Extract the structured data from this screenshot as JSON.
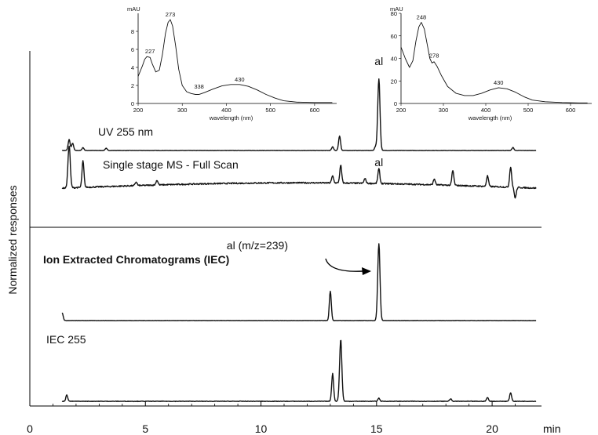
{
  "chart_data": [
    {
      "id": "main",
      "type": "line",
      "ylabel": "Normalized responses",
      "xunit": "min",
      "xlim": [
        0,
        22
      ],
      "xticks": [
        0,
        5,
        10,
        15,
        20
      ],
      "tick_labels": [
        "0",
        "5",
        "10",
        "15",
        "20"
      ],
      "baseline_segments": [
        1.4,
        21.9
      ],
      "series": [
        {
          "name": "UV 255 nm",
          "label_bold": false,
          "peaks": [
            {
              "x": 1.7,
              "h": 15
            },
            {
              "x": 1.85,
              "h": 10
            },
            {
              "x": 2.3,
              "h": 4
            },
            {
              "x": 3.3,
              "h": 3
            },
            {
              "x": 13.1,
              "h": 5
            },
            {
              "x": 13.4,
              "h": 20
            },
            {
              "x": 14.95,
              "h": 5
            },
            {
              "x": 15.1,
              "h": 98
            },
            {
              "x": 20.9,
              "h": 4
            }
          ],
          "annotation": {
            "text": "al",
            "x": 15.1
          }
        },
        {
          "name": "Single stage MS - Full Scan",
          "label_bold": false,
          "peaks": [
            {
              "x": 1.7,
              "h": 72
            },
            {
              "x": 2.3,
              "h": 45
            },
            {
              "x": 4.6,
              "h": 6
            },
            {
              "x": 5.5,
              "h": 8
            },
            {
              "x": 13.1,
              "h": 12
            },
            {
              "x": 13.45,
              "h": 30
            },
            {
              "x": 14.5,
              "h": 8
            },
            {
              "x": 15.1,
              "h": 25
            },
            {
              "x": 17.5,
              "h": 10
            },
            {
              "x": 18.3,
              "h": 25
            },
            {
              "x": 19.8,
              "h": 18
            },
            {
              "x": 20.8,
              "h": 35
            },
            {
              "x": 21.0,
              "h": -18
            }
          ],
          "annotation": {
            "text": "al",
            "x": 15.1
          }
        },
        {
          "name": "Ion Extracted Chromatograms (IEC)",
          "label_bold": true,
          "peaks": [
            {
              "x": 1.4,
              "h": 10
            },
            {
              "x": 13.0,
              "h": 38
            },
            {
              "x": 15.1,
              "h": 100
            }
          ],
          "annotation": {
            "text": "al (m/z=239)",
            "x": 15.1
          }
        },
        {
          "name": "IEC 255",
          "label_bold": false,
          "peaks": [
            {
              "x": 1.6,
              "h": 10
            },
            {
              "x": 13.1,
              "h": 45
            },
            {
              "x": 13.45,
              "h": 100
            },
            {
              "x": 15.1,
              "h": 5
            },
            {
              "x": 18.2,
              "h": 4
            },
            {
              "x": 19.8,
              "h": 6
            },
            {
              "x": 20.8,
              "h": 14
            }
          ]
        }
      ]
    },
    {
      "id": "inset-left",
      "type": "line",
      "ylabel": "mAU",
      "xlabel": "wavelength (nm)",
      "xlim": [
        200,
        650
      ],
      "ylim": [
        0,
        10
      ],
      "xticks": [
        200,
        300,
        400,
        500,
        600
      ],
      "yticks": [
        0,
        2,
        4,
        6,
        8
      ],
      "peak_labels": [
        {
          "text": "227",
          "x": 227,
          "y": 5.2
        },
        {
          "text": "273",
          "x": 273,
          "y": 9.3
        },
        {
          "text": "338",
          "x": 338,
          "y": 1.3
        },
        {
          "text": "430",
          "x": 430,
          "y": 2.1
        }
      ],
      "x": [
        200,
        210,
        215,
        220,
        227,
        232,
        240,
        248,
        255,
        262,
        268,
        273,
        278,
        285,
        292,
        300,
        310,
        320,
        330,
        338,
        350,
        370,
        390,
        410,
        430,
        450,
        470,
        490,
        510,
        530,
        560,
        600,
        640
      ],
      "values": [
        3.0,
        4.2,
        4.9,
        5.2,
        5.1,
        4.4,
        3.5,
        3.7,
        5.4,
        7.8,
        9.0,
        9.3,
        8.6,
        6.4,
        3.8,
        2.0,
        1.3,
        1.1,
        1.0,
        1.0,
        1.2,
        1.6,
        1.95,
        2.1,
        2.1,
        1.9,
        1.5,
        1.0,
        0.6,
        0.3,
        0.15,
        0.1,
        0.1
      ]
    },
    {
      "id": "inset-right",
      "type": "line",
      "ylabel": "mAU",
      "xlabel": "wavelength (nm)",
      "xlim": [
        200,
        650
      ],
      "ylim": [
        0,
        80
      ],
      "xticks": [
        200,
        300,
        400,
        500,
        600
      ],
      "yticks": [
        0,
        20,
        40,
        60,
        80
      ],
      "peak_labels": [
        {
          "text": "248",
          "x": 248,
          "y": 72
        },
        {
          "text": "278",
          "x": 278,
          "y": 38
        },
        {
          "text": "430",
          "x": 430,
          "y": 14
        }
      ],
      "x": [
        200,
        210,
        220,
        228,
        235,
        242,
        248,
        255,
        262,
        268,
        273,
        278,
        285,
        295,
        310,
        330,
        350,
        370,
        390,
        410,
        430,
        450,
        470,
        490,
        510,
        540,
        580,
        620,
        640
      ],
      "values": [
        50,
        40,
        32,
        38,
        55,
        68,
        72,
        66,
        52,
        40,
        36,
        37,
        33,
        25,
        15,
        9,
        7,
        7,
        9,
        12,
        14,
        13,
        10,
        6,
        3,
        1.5,
        0.8,
        0.5,
        0.5
      ]
    }
  ]
}
